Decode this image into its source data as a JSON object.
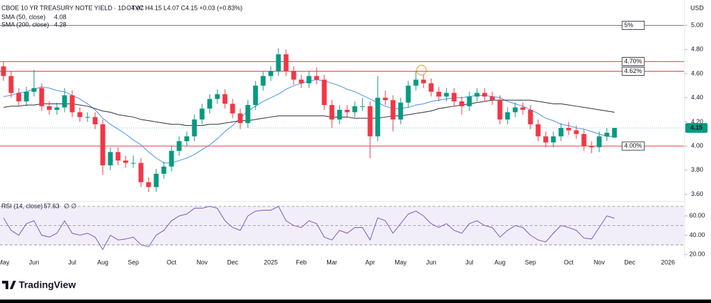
{
  "chart_data": [
    {
      "type": "candlestick",
      "title": "CBOE 10 YR TREASURY NOTE YIELD · 1D · TVC",
      "ohlc_text": "O4.07  H4.15  L4.07  C4.15  +0.03 (+0.83%)",
      "axis_label": "USD",
      "up_color": "#089981",
      "down_color": "#f23645",
      "categories": [
        "May",
        null,
        null,
        null,
        "Jun",
        null,
        null,
        null,
        null,
        "Jul",
        null,
        null,
        null,
        "Aug",
        null,
        null,
        null,
        "Sep",
        null,
        null,
        null,
        null,
        "Oct",
        null,
        null,
        null,
        "Nov",
        null,
        null,
        null,
        "Dec",
        null,
        null,
        null,
        null,
        "2025",
        null,
        null,
        null,
        "Feb",
        null,
        null,
        null,
        "Mar",
        null,
        null,
        null,
        null,
        "Apr",
        null,
        null,
        null,
        "May",
        null,
        null,
        null,
        "Jun",
        null,
        null,
        null,
        null,
        "Jul",
        null,
        null,
        null,
        "Aug",
        null,
        null,
        null,
        "Sep",
        null,
        null,
        null,
        null,
        "Oct",
        null,
        null,
        null,
        "Nov",
        null,
        null,
        null,
        "Dec",
        null,
        null,
        null,
        null,
        "2026",
        null,
        null
      ],
      "open": [
        4.66,
        4.58,
        4.44,
        4.37,
        4.45,
        4.48,
        4.33,
        4.3,
        4.32,
        4.42,
        4.28,
        4.24,
        4.24,
        4.18,
        3.84,
        3.95,
        3.88,
        3.86,
        3.86,
        3.7,
        3.66,
        3.77,
        3.83,
        3.96,
        4.04,
        4.08,
        4.22,
        4.31,
        4.39,
        4.43,
        4.35,
        4.27,
        4.19,
        4.34,
        4.5,
        4.58,
        4.62,
        4.76,
        4.62,
        4.55,
        4.52,
        4.58,
        4.55,
        4.34,
        4.22,
        4.3,
        4.28,
        4.33,
        4.33,
        4.08,
        4.4,
        4.38,
        4.22,
        4.36,
        4.5,
        4.55,
        4.52,
        4.45,
        4.41,
        4.44,
        4.37,
        4.33,
        4.41,
        4.44,
        4.41,
        4.38,
        4.22,
        4.28,
        4.32,
        4.3,
        4.18,
        4.08,
        4.03,
        4.08,
        4.15,
        4.13,
        4.1,
        4.0,
        3.99,
        4.08,
        4.07,
        null,
        null,
        null,
        null,
        null,
        null,
        null,
        null,
        null
      ],
      "high": [
        4.7,
        4.62,
        4.48,
        4.49,
        4.63,
        4.52,
        4.37,
        4.36,
        4.48,
        4.46,
        4.32,
        4.28,
        4.28,
        4.22,
        3.99,
        3.99,
        3.92,
        3.92,
        3.9,
        3.74,
        3.81,
        3.87,
        4.0,
        4.08,
        4.12,
        4.26,
        4.35,
        4.43,
        4.47,
        4.47,
        4.39,
        4.31,
        4.38,
        4.54,
        4.62,
        4.66,
        4.81,
        4.8,
        4.66,
        4.59,
        4.62,
        4.65,
        4.59,
        4.38,
        4.34,
        4.34,
        4.37,
        4.4,
        4.37,
        4.58,
        4.46,
        4.42,
        4.4,
        4.54,
        4.62,
        4.59,
        4.56,
        4.49,
        4.48,
        4.48,
        4.41,
        4.45,
        4.48,
        4.48,
        4.45,
        4.42,
        4.32,
        4.36,
        4.36,
        4.34,
        4.22,
        4.12,
        4.12,
        4.19,
        4.2,
        4.17,
        4.14,
        4.04,
        4.12,
        4.15,
        4.15,
        null,
        null,
        null,
        null,
        null,
        null,
        null,
        null,
        null
      ],
      "low": [
        4.54,
        4.4,
        4.33,
        4.33,
        4.41,
        4.29,
        4.26,
        4.26,
        4.28,
        4.24,
        4.2,
        4.2,
        4.14,
        3.76,
        3.8,
        3.84,
        3.82,
        3.82,
        3.66,
        3.62,
        3.62,
        3.73,
        3.79,
        3.92,
        4.0,
        4.04,
        4.18,
        4.27,
        4.35,
        4.31,
        4.23,
        4.14,
        4.15,
        4.3,
        4.46,
        4.54,
        4.58,
        4.58,
        4.51,
        4.48,
        4.48,
        4.51,
        4.3,
        4.15,
        4.18,
        4.24,
        4.24,
        4.29,
        3.9,
        4.04,
        4.34,
        4.12,
        4.18,
        4.32,
        4.46,
        4.48,
        4.41,
        4.37,
        4.37,
        4.33,
        4.26,
        4.29,
        4.37,
        4.37,
        4.34,
        4.18,
        4.18,
        4.24,
        4.26,
        4.14,
        4.04,
        3.99,
        3.99,
        4.04,
        4.09,
        4.06,
        3.96,
        3.94,
        3.95,
        4.04,
        4.07,
        null,
        null,
        null,
        null,
        null,
        null,
        null,
        null,
        null
      ],
      "close": [
        4.58,
        4.44,
        4.37,
        4.45,
        4.48,
        4.33,
        4.3,
        4.32,
        4.42,
        4.28,
        4.24,
        4.24,
        4.18,
        3.84,
        3.95,
        3.88,
        3.86,
        3.86,
        3.7,
        3.66,
        3.77,
        3.83,
        3.96,
        4.04,
        4.08,
        4.22,
        4.31,
        4.39,
        4.43,
        4.35,
        4.27,
        4.19,
        4.34,
        4.5,
        4.58,
        4.62,
        4.76,
        4.62,
        4.55,
        4.52,
        4.58,
        4.55,
        4.34,
        4.22,
        4.3,
        4.28,
        4.33,
        4.33,
        4.08,
        4.4,
        4.38,
        4.22,
        4.36,
        4.5,
        4.55,
        4.52,
        4.45,
        4.41,
        4.44,
        4.37,
        4.33,
        4.41,
        4.44,
        4.41,
        4.38,
        4.22,
        4.28,
        4.32,
        4.3,
        4.18,
        4.08,
        4.03,
        4.08,
        4.15,
        4.13,
        4.1,
        4.0,
        3.99,
        4.08,
        4.11,
        4.15,
        null,
        null,
        null,
        null,
        null,
        null,
        null,
        null,
        null
      ],
      "series": [
        {
          "name": "SMA (50, close)",
          "last": 4.08,
          "color": "#4a8fe7",
          "values": [
            4.41,
            4.42,
            4.44,
            4.45,
            4.47,
            4.49,
            4.48,
            4.46,
            4.45,
            4.42,
            4.39,
            4.35,
            4.3,
            4.23,
            4.18,
            4.14,
            4.1,
            4.05,
            4.01,
            3.95,
            3.9,
            3.86,
            3.86,
            3.88,
            3.9,
            3.93,
            3.97,
            4.01,
            4.06,
            4.12,
            4.17,
            4.23,
            4.29,
            4.33,
            4.37,
            4.4,
            4.43,
            4.47,
            4.5,
            4.52,
            4.54,
            4.55,
            4.54,
            4.52,
            4.5,
            4.47,
            4.45,
            4.42,
            4.39,
            4.36,
            4.33,
            4.31,
            4.31,
            4.32,
            4.34,
            4.35,
            4.37,
            4.38,
            4.39,
            4.4,
            4.4,
            4.41,
            4.42,
            4.42,
            4.41,
            4.4,
            4.37,
            4.35,
            4.33,
            4.3,
            4.27,
            4.23,
            4.21,
            4.18,
            4.17,
            4.15,
            4.14,
            4.12,
            4.1,
            4.08,
            4.08,
            null,
            null,
            null,
            null,
            null,
            null,
            null,
            null,
            null
          ]
        },
        {
          "name": "SMA (200, close)",
          "last": 4.28,
          "color": "#2a2e39",
          "values": [
            4.32,
            4.33,
            4.33,
            4.34,
            4.34,
            4.35,
            4.35,
            4.35,
            4.35,
            4.35,
            4.34,
            4.33,
            4.31,
            4.29,
            4.28,
            4.26,
            4.25,
            4.24,
            4.22,
            4.21,
            4.2,
            4.19,
            4.18,
            4.18,
            4.17,
            4.17,
            4.17,
            4.18,
            4.18,
            4.19,
            4.2,
            4.21,
            4.21,
            4.22,
            4.23,
            4.24,
            4.25,
            4.25,
            4.25,
            4.25,
            4.25,
            4.25,
            4.25,
            4.24,
            4.24,
            4.24,
            4.23,
            4.23,
            4.23,
            4.23,
            4.24,
            4.25,
            4.25,
            4.26,
            4.27,
            4.28,
            4.29,
            4.31,
            4.32,
            4.33,
            4.34,
            4.35,
            4.36,
            4.37,
            4.38,
            4.38,
            4.38,
            4.38,
            4.38,
            4.38,
            4.37,
            4.36,
            4.35,
            4.35,
            4.34,
            4.33,
            4.32,
            4.31,
            4.3,
            4.29,
            4.28,
            null,
            null,
            null,
            null,
            null,
            null,
            null,
            null,
            null
          ]
        }
      ],
      "levels": [
        {
          "value": 5,
          "label": "5%",
          "color": "#787b86"
        },
        {
          "value": 4.7,
          "label": "4.70%",
          "color": "#f23645"
        },
        {
          "value": 4.62,
          "label": "4.62%",
          "color": "#f23645"
        },
        {
          "value": 4,
          "label": "4.00%",
          "color": "#f23645"
        }
      ],
      "last_price": 4.15,
      "ylim": [
        3.54,
        5.21
      ],
      "yticks": [
        {
          "value": 5,
          "label": "5.00"
        },
        {
          "value": 4.8,
          "label": "4.80"
        },
        {
          "value": 4.6,
          "label": "4.60"
        },
        {
          "value": 4.4,
          "label": "4.40"
        },
        {
          "value": 4.2,
          "label": "4.20"
        },
        {
          "value": 4,
          "label": "4.00"
        },
        {
          "value": 3.8,
          "label": "3.80"
        },
        {
          "value": 3.6,
          "label": "3.60"
        }
      ]
    },
    {
      "type": "line",
      "title": "RSI (14, close)",
      "extras": "∅  ∅",
      "series": [
        {
          "name": "RSI",
          "last": 57.63,
          "color": "#7e57c2",
          "values": [
            58,
            45,
            40,
            52,
            55,
            40,
            38,
            42,
            55,
            42,
            40,
            42,
            38,
            25,
            40,
            35,
            36,
            38,
            30,
            28,
            40,
            45,
            55,
            60,
            62,
            68,
            68,
            70,
            68,
            55,
            48,
            45,
            60,
            65,
            66,
            66,
            70,
            55,
            50,
            48,
            55,
            52,
            38,
            35,
            45,
            42,
            48,
            48,
            35,
            58,
            55,
            42,
            52,
            62,
            65,
            60,
            52,
            48,
            52,
            45,
            42,
            52,
            55,
            50,
            48,
            38,
            45,
            50,
            48,
            40,
            35,
            33,
            42,
            50,
            48,
            45,
            37,
            36,
            48,
            60,
            57.63,
            null,
            null,
            null,
            null,
            null,
            null,
            null,
            null,
            null
          ]
        }
      ],
      "band": [
        30,
        70
      ],
      "guides": [
        30,
        50,
        70
      ],
      "ylim": [
        15.7,
        75
      ],
      "yticks": [
        {
          "value": 60,
          "label": "60.00"
        },
        {
          "value": 40,
          "label": "40.00"
        },
        {
          "value": 20,
          "label": "20.00"
        }
      ]
    }
  ],
  "footer": {
    "brand": "TradingView"
  }
}
